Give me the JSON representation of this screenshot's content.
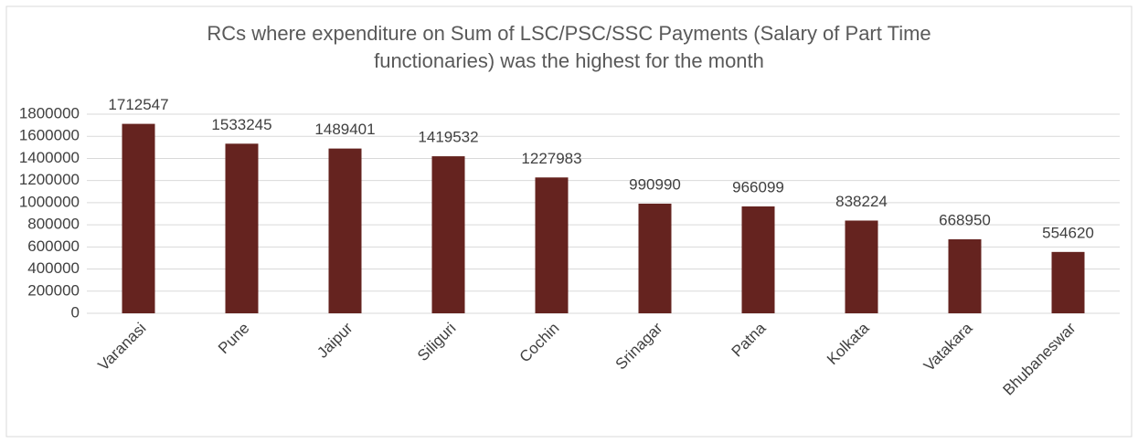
{
  "chart_data": {
    "type": "bar",
    "title": "RCs where expenditure on Sum of LSC/PSC/SSC  Payments (Salary of Part Time functionaries) was the highest for the month",
    "categories": [
      "Varanasi",
      "Pune",
      "Jaipur",
      "Siliguri",
      "Cochin",
      "Srinagar",
      "Patna",
      "Kolkata",
      "Vatakara",
      "Bhubaneswar"
    ],
    "values": [
      1712547,
      1533245,
      1489401,
      1419532,
      1227983,
      990990,
      966099,
      838224,
      668950,
      554620
    ],
    "color": "#65231f",
    "ylim": [
      0,
      1800000
    ],
    "yticks": [
      0,
      200000,
      400000,
      600000,
      800000,
      1000000,
      1200000,
      1400000,
      1600000,
      1800000
    ],
    "grid": true
  }
}
